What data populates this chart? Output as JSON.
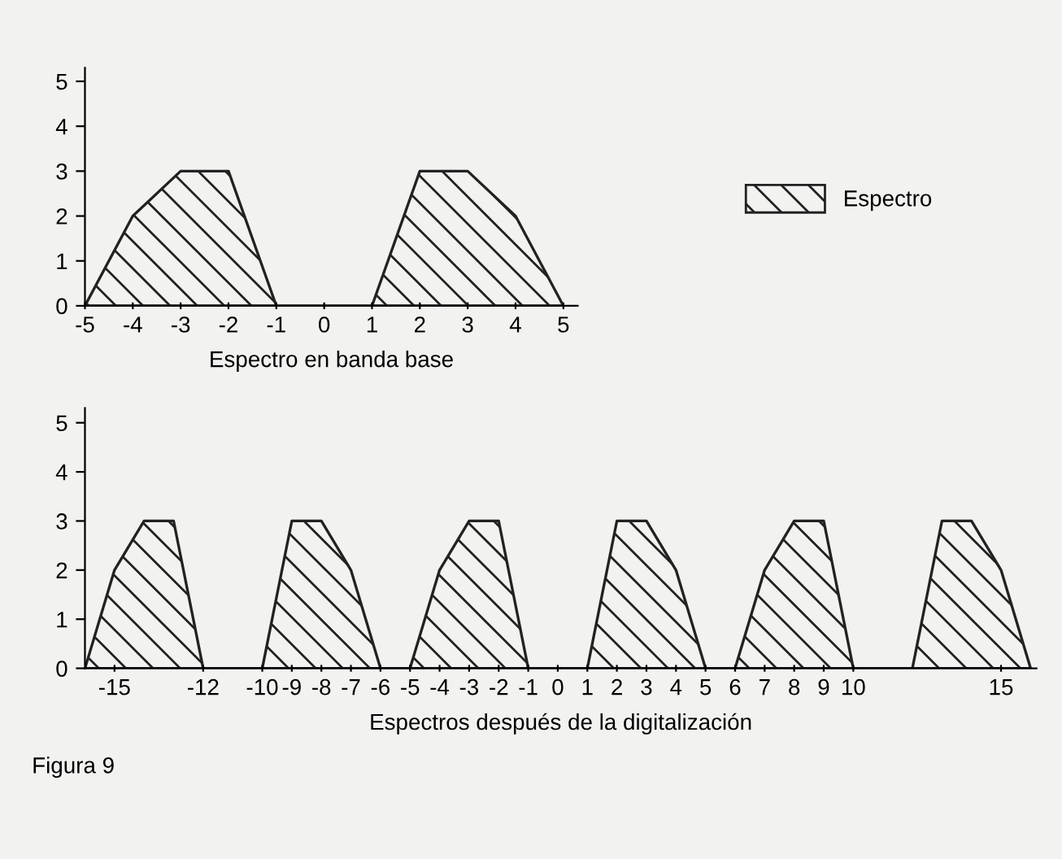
{
  "chart_data": [
    {
      "type": "area",
      "xlabel": "Espectro en banda base",
      "xlim": [
        -5,
        5.3
      ],
      "ylim": [
        0,
        5.3
      ],
      "xticks": [
        -5,
        -4,
        -3,
        -2,
        -1,
        0,
        1,
        2,
        3,
        4,
        5
      ],
      "yticks": [
        0,
        1,
        2,
        3,
        4,
        5
      ],
      "grid": false,
      "legend": "right",
      "series": [
        {
          "name": "Espectro",
          "color": "#222222",
          "x": [
            -5,
            -4,
            -3,
            -2,
            -1,
            1,
            2,
            3,
            4,
            5
          ],
          "values": [
            0,
            2,
            3,
            3,
            0,
            0,
            3,
            3,
            2,
            0
          ]
        }
      ]
    },
    {
      "type": "area",
      "xlabel": "Espectros después de la digitalización",
      "xlim": [
        -16,
        16.2
      ],
      "ylim": [
        0,
        5.3
      ],
      "xticks": [
        -15,
        -12,
        -10,
        -9,
        -8,
        -7,
        -6,
        -5,
        -4,
        -3,
        -2,
        -1,
        0,
        1,
        2,
        3,
        4,
        5,
        6,
        7,
        8,
        9,
        10,
        15
      ],
      "yticks": [
        0,
        1,
        2,
        3,
        4,
        5
      ],
      "grid": false,
      "annotations": [
        "Figura 9"
      ],
      "series": [
        {
          "color": "#222222",
          "x": [
            -16,
            -15,
            -14,
            -13,
            -12,
            -10,
            -9,
            -8,
            -7,
            -6,
            -5,
            -4,
            -3,
            -2,
            -1,
            1,
            2,
            3,
            4,
            5,
            6,
            7,
            8,
            9,
            10,
            12,
            13,
            14,
            15,
            16
          ],
          "values": [
            0,
            2,
            3,
            3,
            0,
            0,
            3,
            3,
            2,
            0,
            0,
            2,
            3,
            3,
            0,
            0,
            3,
            3,
            2,
            0,
            0,
            2,
            3,
            3,
            0,
            0,
            3,
            3,
            2,
            0
          ]
        }
      ]
    }
  ]
}
